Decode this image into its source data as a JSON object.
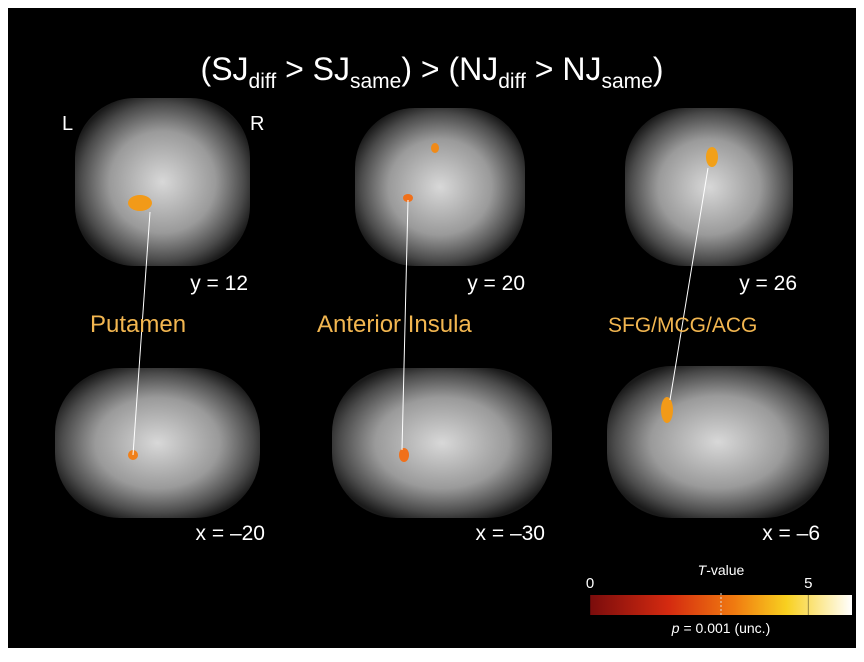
{
  "title": [
    "(SJ",
    "diff",
    " > SJ",
    "same",
    ") > (NJ",
    "diff",
    " > NJ",
    "same",
    ")"
  ],
  "orientation": {
    "left": "L",
    "right": "R"
  },
  "coronal": [
    "y = 12",
    "y = 20",
    "y = 26"
  ],
  "sagittal": [
    "x = –20",
    "x = –30",
    "x = –6"
  ],
  "regions": [
    "Putamen",
    "Anterior Insula",
    "SFG/MCG/ACG"
  ],
  "colorbar": {
    "label": {
      "italic": "T",
      "text": "-value"
    },
    "lim": [
      0,
      6
    ],
    "ticks": [
      0,
      5
    ],
    "threshold": 3.0,
    "note": {
      "italic": "p",
      "text": " = 0.001 (unc.)"
    }
  }
}
